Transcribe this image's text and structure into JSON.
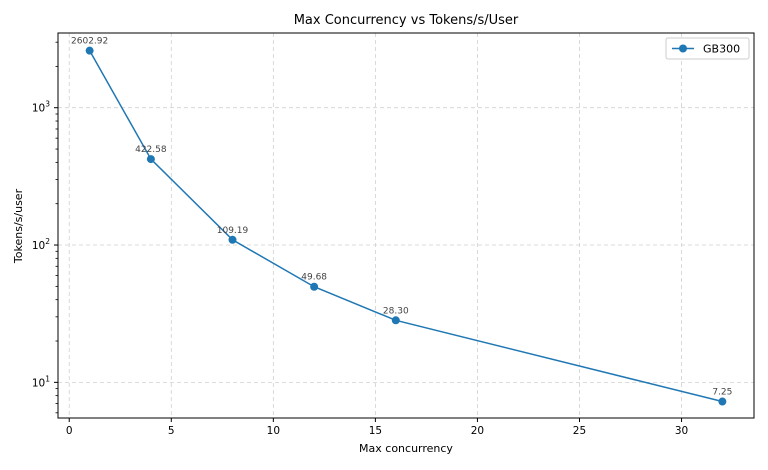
{
  "chart_data": {
    "type": "line",
    "title": "Max Concurrency vs Tokens/s/User",
    "xlabel": "Max concurrency",
    "ylabel": "Tokens/s/user",
    "yscale": "log",
    "xlim": [
      -0.55,
      33.55
    ],
    "ylim": [
      5.5,
      3500
    ],
    "x_ticks": [
      0,
      5,
      10,
      15,
      20,
      25,
      30
    ],
    "x_tick_labels": [
      "0",
      "5",
      "10",
      "15",
      "20",
      "25",
      "30"
    ],
    "y_ticks": [
      10,
      100,
      1000
    ],
    "y_tick_labels": [
      "10^1",
      "10^2",
      "10^3"
    ],
    "grid": true,
    "legend_position": "top-right",
    "series": [
      {
        "name": "GB300",
        "color": "#1f77b4",
        "marker": "circle",
        "x": [
          1,
          4,
          8,
          12,
          16,
          32
        ],
        "y": [
          2602.92,
          422.58,
          109.19,
          49.68,
          28.3,
          7.25
        ],
        "labels": [
          "2602.92",
          "422.58",
          "109.19",
          "49.68",
          "28.30",
          "7.25"
        ]
      }
    ]
  }
}
